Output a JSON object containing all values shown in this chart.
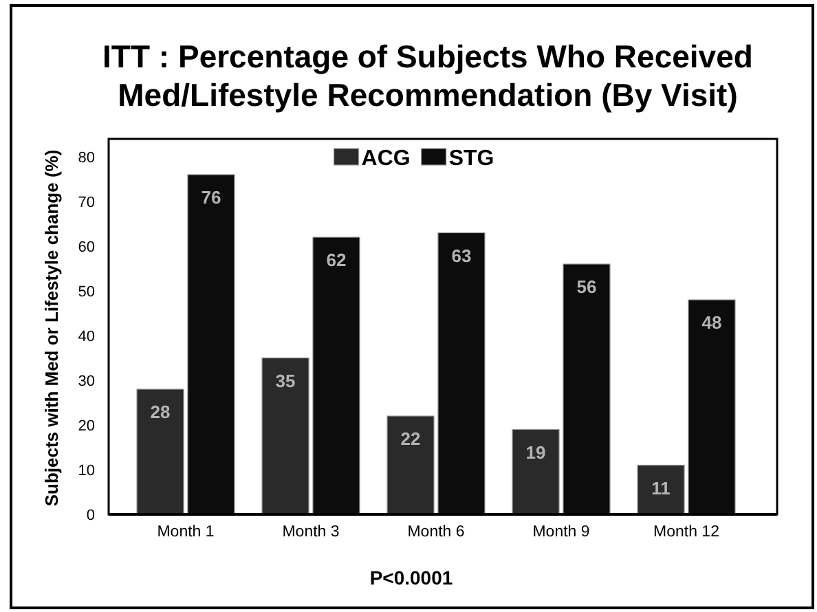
{
  "chart_data": {
    "type": "bar",
    "title": "ITT : Percentage of Subjects Who Received Med/Lifestyle Recommendation (By Visit)",
    "ylabel": "Subjects with Med or Lifestyle change (%)",
    "categories": [
      "Month 1",
      "Month 3",
      "Month 6",
      "Month 9",
      "Month 12"
    ],
    "series": [
      {
        "name": "ACG",
        "color": "#2a2a2a",
        "values": [
          28,
          35,
          22,
          19,
          11
        ]
      },
      {
        "name": "STG",
        "color": "#0c0c0c",
        "values": [
          76,
          62,
          63,
          56,
          48
        ]
      }
    ],
    "ylim": [
      0,
      84
    ],
    "yticks": [
      0,
      10,
      20,
      30,
      40,
      50,
      60,
      70,
      80
    ],
    "legend": "top",
    "data_labels": true,
    "annotations": [
      "P<0.0001"
    ]
  }
}
